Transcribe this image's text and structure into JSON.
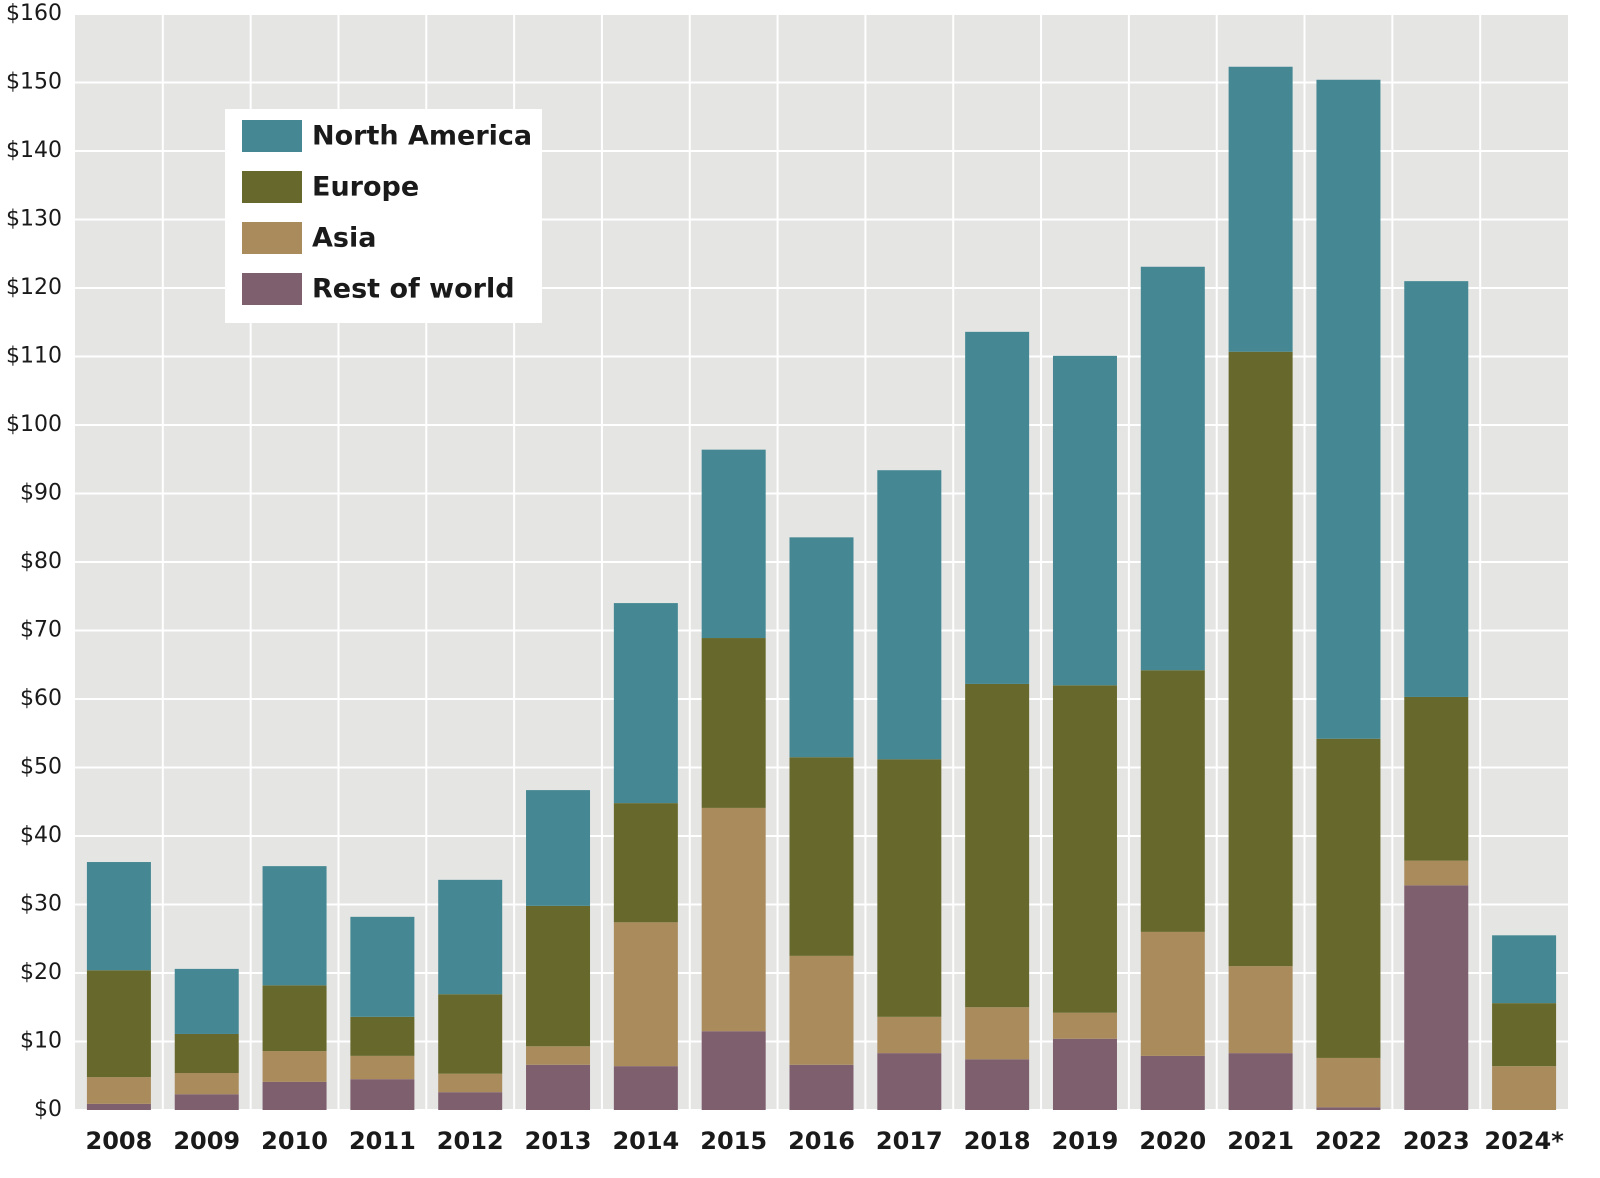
{
  "chart_data": {
    "type": "stacked_bar",
    "categories": [
      "2008",
      "2009",
      "2010",
      "2011",
      "2012",
      "2013",
      "2014",
      "2015",
      "2016",
      "2017",
      "2018",
      "2019",
      "2020",
      "2021",
      "2022",
      "2023",
      "2024*"
    ],
    "series": [
      {
        "name": "North America",
        "color": "#458893",
        "values": [
          15.8,
          9.5,
          17.4,
          14.6,
          16.7,
          16.9,
          29.2,
          27.5,
          32.1,
          42.2,
          51.4,
          48.1,
          58.9,
          41.6,
          96.2,
          60.7,
          9.9
        ]
      },
      {
        "name": "Europe",
        "color": "#67692c",
        "values": [
          15.6,
          5.7,
          9.6,
          5.7,
          11.6,
          20.5,
          17.4,
          24.8,
          29.0,
          37.6,
          47.2,
          47.8,
          38.2,
          89.7,
          46.6,
          23.9,
          9.2
        ]
      },
      {
        "name": "Asia",
        "color": "#a98b5c",
        "values": [
          3.9,
          3.1,
          4.5,
          3.4,
          2.7,
          2.7,
          21.0,
          32.6,
          15.9,
          5.3,
          7.6,
          3.8,
          18.1,
          12.7,
          7.2,
          3.6,
          6.4
        ]
      },
      {
        "name": "Rest of world",
        "color": "#7e5f6e",
        "values": [
          0.9,
          2.3,
          4.1,
          4.5,
          2.6,
          6.6,
          6.4,
          11.5,
          6.6,
          8.3,
          7.4,
          10.4,
          7.9,
          8.3,
          0.4,
          32.8,
          0
        ]
      }
    ],
    "ylim": [
      0,
      160
    ],
    "yticks": [
      {
        "value": 0,
        "label": "$0"
      },
      {
        "value": 10,
        "label": "$10"
      },
      {
        "value": 20,
        "label": "$20"
      },
      {
        "value": 30,
        "label": "$30"
      },
      {
        "value": 40,
        "label": "$40"
      },
      {
        "value": 50,
        "label": "$50"
      },
      {
        "value": 60,
        "label": "$60"
      },
      {
        "value": 70,
        "label": "$70"
      },
      {
        "value": 80,
        "label": "$80"
      },
      {
        "value": 90,
        "label": "$90"
      },
      {
        "value": 100,
        "label": "$100"
      },
      {
        "value": 110,
        "label": "$110"
      },
      {
        "value": 120,
        "label": "$120"
      },
      {
        "value": 130,
        "label": "$130"
      },
      {
        "value": 140,
        "label": "$140"
      },
      {
        "value": 150,
        "label": "$150"
      },
      {
        "value": 160,
        "label": "$160"
      }
    ],
    "grid": true,
    "legend": "upper-left"
  }
}
